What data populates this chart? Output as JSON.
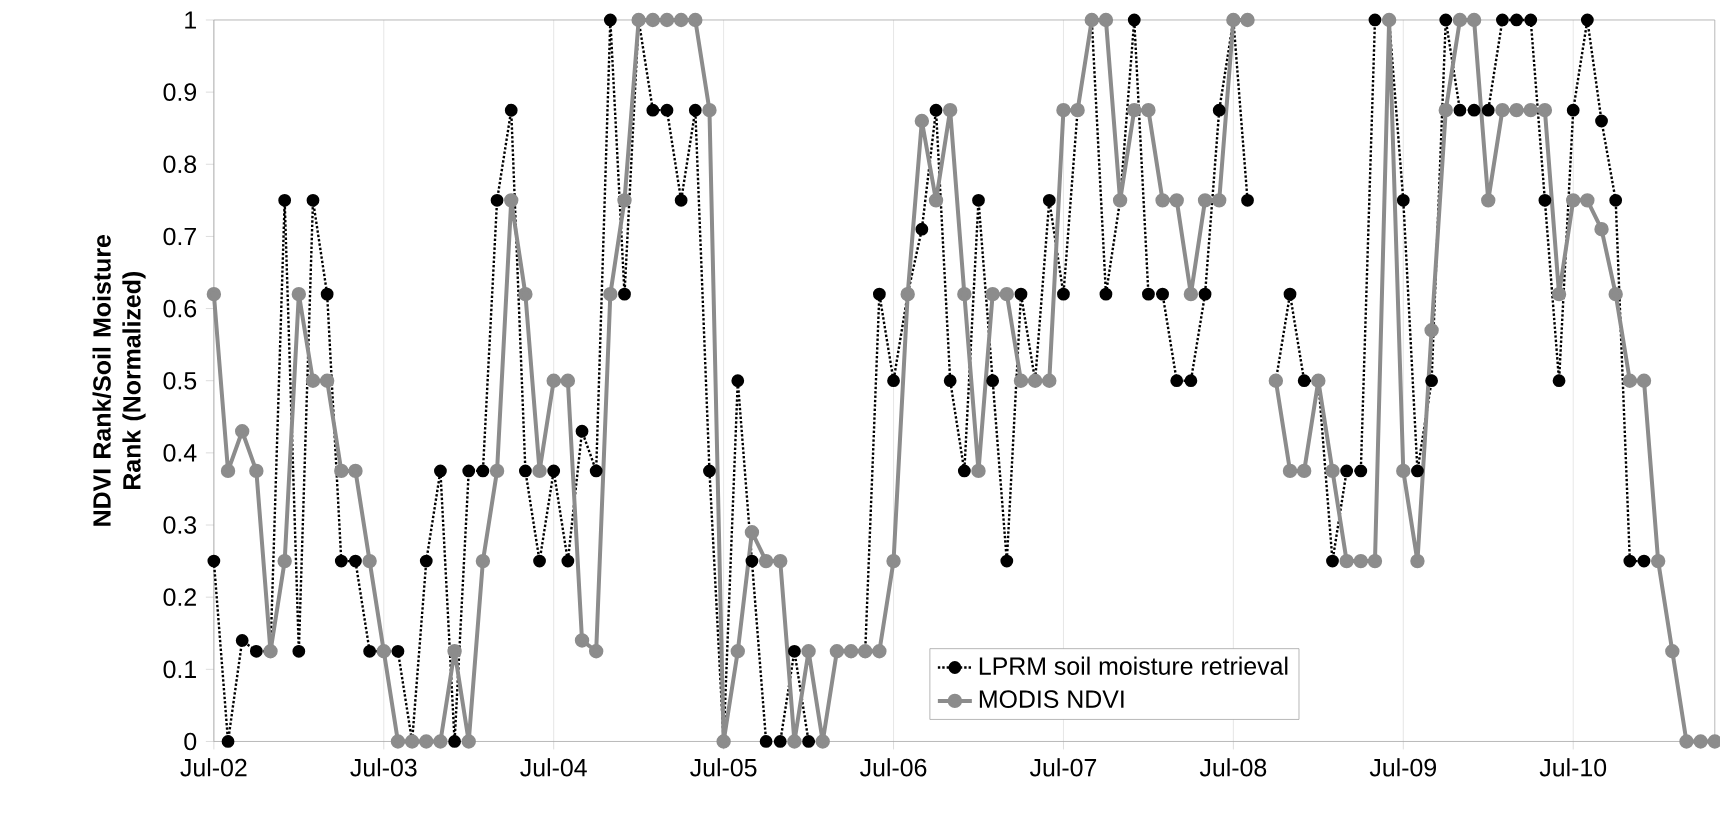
{
  "chart_data": {
    "type": "line",
    "ylabel": "NDVI Rank/Soil Moisture Rank (Normalized)",
    "x": [
      "2002-07",
      "2002-08",
      "2002-09",
      "2002-10",
      "2002-11",
      "2002-12",
      "2003-01",
      "2003-02",
      "2003-03",
      "2003-04",
      "2003-05",
      "2003-06",
      "2003-07",
      "2003-08",
      "2003-09",
      "2003-10",
      "2003-11",
      "2003-12",
      "2004-01",
      "2004-02",
      "2004-03",
      "2004-04",
      "2004-05",
      "2004-06",
      "2004-07",
      "2004-08",
      "2004-09",
      "2004-10",
      "2004-11",
      "2004-12",
      "2005-01",
      "2005-02",
      "2005-03",
      "2005-04",
      "2005-05",
      "2005-06",
      "2005-07",
      "2005-08",
      "2005-09",
      "2005-10",
      "2005-11",
      "2005-12",
      "2006-01",
      "2006-02",
      "2006-03",
      "2006-04",
      "2006-05",
      "2006-06",
      "2006-07",
      "2006-08",
      "2006-09",
      "2006-10",
      "2006-11",
      "2006-12",
      "2007-01",
      "2007-02",
      "2007-03",
      "2007-04",
      "2007-05",
      "2007-06",
      "2007-07",
      "2007-08",
      "2007-09",
      "2007-10",
      "2007-11",
      "2007-12",
      "2008-01",
      "2008-02",
      "2008-03",
      "2008-04",
      "2008-05",
      "2008-06",
      "2008-07",
      "2008-08",
      "2008-09",
      "2008-10",
      "2008-11",
      "2008-12",
      "2009-01",
      "2009-02",
      "2009-03",
      "2009-04",
      "2009-05",
      "2009-06",
      "2009-07",
      "2009-08",
      "2009-09",
      "2009-10",
      "2009-11",
      "2009-12",
      "2010-01",
      "2010-02",
      "2010-03",
      "2010-04",
      "2010-05",
      "2010-06",
      "2010-07",
      "2010-08",
      "2010-09",
      "2010-10",
      "2010-11",
      "2010-12",
      "2011-01",
      "2011-02",
      "2011-03",
      "2011-04",
      "2011-05"
    ],
    "series": [
      {
        "name": "LPRM soil moisture retrieval",
        "color": "#000000",
        "line_style": "dotted",
        "marker": "circle",
        "values": [
          0.25,
          0,
          0.14,
          0.125,
          0.125,
          0.75,
          0.125,
          0.75,
          0.62,
          0.25,
          0.25,
          0.125,
          0.125,
          0.125,
          0,
          0.25,
          0.375,
          0,
          0.375,
          0.375,
          0.75,
          0.875,
          0.375,
          0.25,
          0.375,
          0.25,
          0.43,
          0.375,
          1,
          0.62,
          1,
          0.875,
          0.875,
          0.75,
          0.875,
          0.375,
          0,
          0.5,
          0.25,
          0,
          0,
          0.125,
          0,
          0,
          null,
          0.125,
          0.125,
          0.62,
          0.5,
          0.62,
          0.71,
          0.875,
          0.5,
          0.375,
          0.75,
          0.5,
          0.25,
          0.62,
          0.5,
          0.75,
          0.62,
          0.875,
          1,
          0.62,
          0.75,
          1,
          0.62,
          0.62,
          0.5,
          0.5,
          0.62,
          0.875,
          1,
          0.75,
          null,
          0.5,
          0.62,
          0.5,
          0.5,
          0.25,
          0.375,
          0.375,
          1,
          1,
          0.75,
          0.375,
          0.5,
          1,
          0.875,
          0.875,
          0.875,
          1,
          1,
          1,
          0.75,
          0.5,
          0.875,
          1,
          0.86,
          0.75,
          0.25,
          0.25,
          null,
          null,
          null,
          null,
          null
        ]
      },
      {
        "name": "MODIS NDVI",
        "color": "#8c8c8c",
        "line_style": "solid",
        "marker": "circle",
        "values": [
          0.62,
          0.375,
          0.43,
          0.375,
          0.125,
          0.25,
          0.62,
          0.5,
          0.5,
          0.375,
          0.375,
          0.25,
          0.125,
          0,
          0,
          0,
          0,
          0.125,
          0,
          0.25,
          0.375,
          0.75,
          0.62,
          0.375,
          0.5,
          0.5,
          0.14,
          0.125,
          0.62,
          0.75,
          1,
          1,
          1,
          1,
          1,
          0.875,
          0,
          0.125,
          0.29,
          0.25,
          0.25,
          0,
          0.125,
          0,
          0.125,
          0.125,
          0.125,
          0.125,
          0.25,
          0.62,
          0.86,
          0.75,
          0.875,
          0.62,
          0.375,
          0.62,
          0.62,
          0.5,
          0.5,
          0.5,
          0.875,
          0.875,
          1,
          1,
          0.75,
          0.875,
          0.875,
          0.75,
          0.75,
          0.62,
          0.75,
          0.75,
          1,
          1,
          null,
          0.5,
          0.375,
          0.375,
          0.5,
          0.375,
          0.25,
          0.25,
          0.25,
          1,
          0.375,
          0.25,
          0.57,
          0.875,
          1,
          1,
          0.75,
          0.875,
          0.875,
          0.875,
          0.875,
          0.62,
          0.75,
          0.75,
          0.71,
          0.62,
          0.5,
          0.5,
          0.25,
          0.125,
          0,
          0,
          0
        ]
      }
    ],
    "xlim": [
      "2002-07",
      "2011-05"
    ],
    "xticks": [
      {
        "value": "2002-07",
        "label": "Jul-02"
      },
      {
        "value": "2003-07",
        "label": "Jul-03"
      },
      {
        "value": "2004-07",
        "label": "Jul-04"
      },
      {
        "value": "2005-07",
        "label": "Jul-05"
      },
      {
        "value": "2006-07",
        "label": "Jul-06"
      },
      {
        "value": "2007-07",
        "label": "Jul-07"
      },
      {
        "value": "2008-07",
        "label": "Jul-08"
      },
      {
        "value": "2009-07",
        "label": "Jul-09"
      },
      {
        "value": "2010-07",
        "label": "Jul-10"
      }
    ],
    "ylim": [
      0,
      1
    ],
    "yticks": [
      0,
      0.1,
      0.2,
      0.3,
      0.4,
      0.5,
      0.6,
      0.7,
      0.8,
      0.9,
      1
    ],
    "grid": "x",
    "legend": "bottom"
  }
}
